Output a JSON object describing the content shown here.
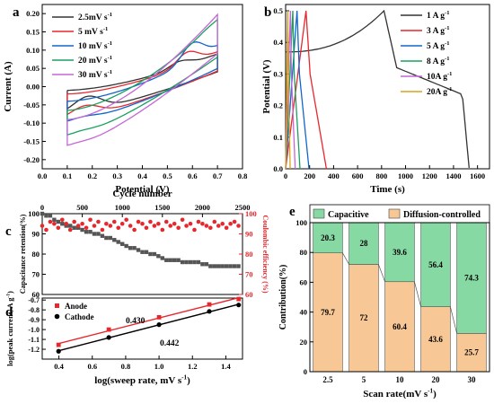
{
  "chart_data": [
    {
      "panel": "a",
      "type": "line",
      "xlabel": "Potential (V)",
      "ylabel": "Current (A)",
      "xlim": [
        0.0,
        0.8
      ],
      "ylim": [
        -0.225,
        0.225
      ],
      "xticks": [
        "0.0",
        "0.1",
        "0.2",
        "0.3",
        "0.4",
        "0.5",
        "0.6",
        "0.7",
        "0.8"
      ],
      "yticks": [
        "-0.20",
        "-0.15",
        "-0.10",
        "-0.05",
        "0.00",
        "0.05",
        "0.10",
        "0.15",
        "0.20"
      ],
      "legend": "top-left",
      "series": [
        {
          "name": "2.5mV s",
          "sup": "-1",
          "color": "#333333",
          "peak_ox": [
            0.55,
            0.07
          ],
          "peak_red": [
            0.18,
            -0.035
          ],
          "end_upper": 0.09,
          "start": -0.01,
          "vertex_lower": -0.075,
          "a": 0.025
        },
        {
          "name": "5   mV s",
          "sup": "-1",
          "color": "#e8272c",
          "peak_ox": [
            0.58,
            0.095
          ],
          "peak_red": [
            0.17,
            -0.06
          ],
          "end_upper": 0.095,
          "start": -0.02,
          "vertex_lower": -0.09,
          "a": 0.04
        },
        {
          "name": "10 mV s",
          "sup": "-1",
          "color": "#1166cc",
          "peak_ox": [
            0.6,
            0.12
          ],
          "peak_red": [
            0.16,
            -0.09
          ],
          "end_upper": 0.11,
          "start": -0.04,
          "vertex_lower": -0.1,
          "a": 0.06
        },
        {
          "name": "20 mV s",
          "sup": "-1",
          "color": "#1aa060",
          "peak_ox": [
            0.66,
            0.16
          ],
          "peak_red": [
            0.14,
            -0.13
          ],
          "end_upper": 0.18,
          "start": -0.065,
          "vertex_lower": -0.14,
          "a": 0.08
        },
        {
          "name": "30 mV s",
          "sup": "-1",
          "color": "#c666d8",
          "peak_ox": [
            0.69,
            0.19
          ],
          "peak_red": [
            0.12,
            -0.16
          ],
          "end_upper": 0.2,
          "start": -0.09,
          "vertex_lower": -0.17,
          "a": 0.1
        }
      ]
    },
    {
      "panel": "b",
      "type": "line",
      "xlabel": "Time (s)",
      "ylabel": "Potential (V)",
      "xlim": [
        0,
        1700
      ],
      "ylim": [
        0.0,
        0.52
      ],
      "xticks": [
        0,
        200,
        400,
        600,
        800,
        1000,
        1200,
        1400,
        1600
      ],
      "yticks": [
        "0.0",
        "0.1",
        "0.2",
        "0.3",
        "0.4",
        "0.5"
      ],
      "legend": "top-right",
      "series": [
        {
          "name": "1 A g",
          "sup": "-1",
          "color": "#333333",
          "charge_end": 820,
          "discharge_end": 1530
        },
        {
          "name": "3 A g",
          "sup": "-1",
          "color": "#e8272c",
          "charge_end": 170,
          "discharge_end": 340
        },
        {
          "name": "5 A g",
          "sup": "-1",
          "color": "#1166cc",
          "charge_end": 95,
          "discharge_end": 195
        },
        {
          "name": "8 A g",
          "sup": "-1",
          "color": "#1aa060",
          "charge_end": 60,
          "discharge_end": 120
        },
        {
          "name": "10A g",
          "sup": "-1",
          "color": "#c666d8",
          "charge_end": 40,
          "discharge_end": 80
        },
        {
          "name": "20A g",
          "sup": "-1",
          "color": "#d9a21b",
          "charge_end": 18,
          "discharge_end": 38
        }
      ]
    },
    {
      "panel": "c",
      "type": "scatter",
      "title": "Cycle number",
      "ylabel_left": "Capacitance retention(%)",
      "ylabel_right": "Coulombic efficiency (%)",
      "xlim": [
        0,
        2500
      ],
      "ylim_left": [
        60,
        100
      ],
      "ylim_right": [
        60,
        100
      ],
      "xticks": [
        0,
        500,
        1000,
        1500,
        2000,
        2500
      ],
      "yticks_left": [
        60,
        70,
        80,
        90,
        100
      ],
      "yticks_right": [
        60,
        70,
        80,
        90,
        100
      ],
      "series": [
        {
          "name": "Capacitance retention",
          "color": "#555555",
          "axis": "left",
          "x": [
            0,
            50,
            100,
            150,
            200,
            250,
            300,
            350,
            400,
            450,
            500,
            550,
            600,
            650,
            700,
            750,
            800,
            850,
            900,
            950,
            1000,
            1050,
            1100,
            1150,
            1200,
            1250,
            1300,
            1350,
            1400,
            1450,
            1500,
            1550,
            1600,
            1650,
            1700,
            1750,
            1800,
            1850,
            1900,
            1950,
            2000,
            2050,
            2100,
            2150,
            2200,
            2250,
            2300,
            2350,
            2400,
            2450
          ],
          "y": [
            100,
            99,
            99,
            97,
            96,
            95,
            94,
            94,
            93,
            93,
            92,
            91,
            91,
            90,
            90,
            89,
            88,
            88,
            87,
            86,
            85,
            84,
            83,
            83,
            82,
            81,
            81,
            80,
            80,
            79,
            78,
            77,
            77,
            77,
            77,
            76,
            76,
            76,
            76,
            76,
            75,
            75,
            74,
            74,
            74,
            74,
            74,
            74,
            74,
            74
          ]
        },
        {
          "name": "Coulombic efficiency",
          "color": "#e8272c",
          "axis": "right",
          "x": [
            0,
            50,
            100,
            150,
            200,
            250,
            300,
            350,
            400,
            450,
            500,
            550,
            600,
            650,
            700,
            750,
            800,
            850,
            900,
            950,
            1000,
            1050,
            1100,
            1150,
            1200,
            1250,
            1300,
            1350,
            1400,
            1450,
            1500,
            1550,
            1600,
            1650,
            1700,
            1750,
            1800,
            1850,
            1900,
            1950,
            2000,
            2050,
            2100,
            2150,
            2200,
            2250,
            2300,
            2350,
            2400,
            2450
          ],
          "y": [
            94,
            92,
            96,
            95,
            93,
            97,
            95,
            92,
            96,
            94,
            95,
            93,
            97,
            94,
            96,
            92,
            95,
            94,
            96,
            93,
            95,
            97,
            94,
            92,
            96,
            95,
            93,
            96,
            94,
            95,
            92,
            96,
            94,
            95,
            93,
            97,
            94,
            95,
            92,
            96,
            95,
            94,
            93,
            96,
            94,
            95,
            93,
            95,
            96,
            94
          ]
        }
      ]
    },
    {
      "panel": "d",
      "type": "scatter",
      "xlabel": "log(sweep rate, mV s",
      "xlabel_sup": "-1",
      "xlabel_tail": ")",
      "ylabel": "log(peak current, A g",
      "ylabel_sup": "-1",
      "ylabel_tail": ")",
      "xlim": [
        0.3,
        1.5
      ],
      "ylim": [
        -1.3,
        -0.68
      ],
      "xticks": [
        "0.4",
        "0.6",
        "0.8",
        "1.0",
        "1.2",
        "1.4"
      ],
      "yticks": [
        "-0.7",
        "-0.8",
        "-0.9",
        "-1.0",
        "-1.1",
        "-1.2"
      ],
      "legend": "top-left",
      "annotations": [
        "0.430",
        "0.442"
      ],
      "series": [
        {
          "name": "Anode",
          "color": "#e8272c",
          "marker": "square",
          "x": [
            0.398,
            0.699,
            1.0,
            1.301,
            1.477
          ],
          "y": [
            -1.155,
            -1.0,
            -0.875,
            -0.745,
            -0.69
          ]
        },
        {
          "name": "Cathode",
          "color": "#000000",
          "marker": "circle",
          "x": [
            0.398,
            0.699,
            1.0,
            1.301,
            1.477
          ],
          "y": [
            -1.22,
            -1.08,
            -0.95,
            -0.815,
            -0.75
          ]
        }
      ]
    },
    {
      "panel": "e",
      "type": "bar",
      "xlabel": "Scan rate(mV s",
      "xlabel_sup": "-1",
      "xlabel_tail": ")",
      "ylabel": "Contribution(%)",
      "ylim": [
        0,
        100
      ],
      "yticks": [
        0,
        20,
        40,
        60,
        80,
        100
      ],
      "categories": [
        "2.5",
        "5",
        "10",
        "20",
        "30"
      ],
      "legend": "top",
      "series": [
        {
          "name": "Diffusion-controlled",
          "color": "#f7c795",
          "values": [
            79.7,
            72,
            60.4,
            43.6,
            25.7
          ],
          "labels": [
            "79.7",
            "72",
            "60.4",
            "43.6",
            "25.7"
          ]
        },
        {
          "name": "Capacitive",
          "color": "#86d9a2",
          "values": [
            20.3,
            28,
            39.6,
            56.4,
            74.3
          ],
          "labels": [
            "20.3",
            "28",
            "39.6",
            "56.4",
            "74.3"
          ]
        }
      ]
    }
  ],
  "panel_labels": [
    "a",
    "b",
    "c",
    "d",
    "e"
  ]
}
